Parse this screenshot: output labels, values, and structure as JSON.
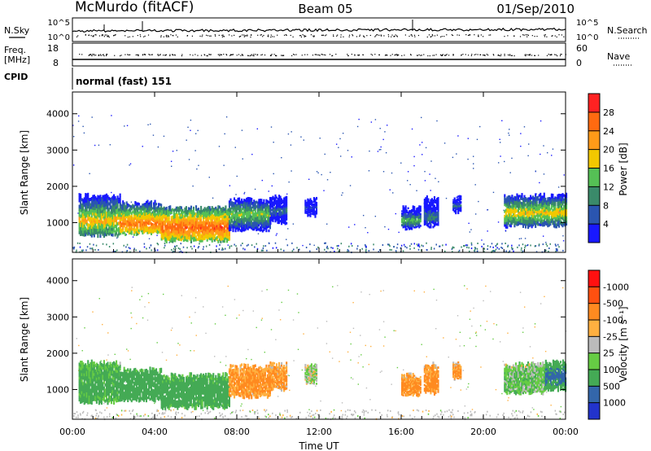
{
  "header": {
    "station": "McMurdo (fitACF)",
    "beam": "Beam 05",
    "date": "01/Sep/2010"
  },
  "summary_panels": {
    "nsky": {
      "label": "N.Sky",
      "ticks": [
        "10^5",
        "10^0"
      ]
    },
    "nsearch": {
      "label": "N.Search",
      "ticks": [
        "10^5",
        "10^0"
      ]
    },
    "freq": {
      "label_line1": "Freq.",
      "label_line2": "[MHz]",
      "ticks": [
        "18",
        "8"
      ]
    },
    "nave": {
      "label": "Nave",
      "ticks": [
        "60",
        "0"
      ]
    },
    "cpid": {
      "label": "CPID",
      "value": "normal (fast) 151"
    }
  },
  "chart_data": [
    {
      "type": "heatmap",
      "name": "power",
      "ylabel": "Slant Range [km]",
      "xlabel": "Time UT",
      "x_ticks": [
        "00:00",
        "04:00",
        "08:00",
        "12:00",
        "16:00",
        "20:00",
        "00:00"
      ],
      "x_range_hours": [
        0,
        24
      ],
      "y_ticks": [
        1000,
        2000,
        3000,
        4000
      ],
      "ylim": [
        180,
        4600
      ],
      "colorbar": {
        "label": "Power [dB]",
        "tick_labels": [
          "4",
          "8",
          "12",
          "16",
          "20",
          "24",
          "28"
        ],
        "bins": [
          {
            "color": "#1818ff"
          },
          {
            "color": "#2a55b0"
          },
          {
            "color": "#3a8a6a"
          },
          {
            "color": "#55c055"
          },
          {
            "color": "#f2c800"
          },
          {
            "color": "#ff9a18"
          },
          {
            "color": "#ff6a10"
          },
          {
            "color": "#ff2222"
          }
        ]
      },
      "patches": [
        {
          "t0": 0.3,
          "t1": 2.3,
          "r0": 650,
          "r1": 1750,
          "core": 1020,
          "value": 20
        },
        {
          "t0": 2.3,
          "t1": 4.3,
          "r0": 700,
          "r1": 1550,
          "core": 950,
          "value": 25
        },
        {
          "t0": 4.3,
          "t1": 7.6,
          "r0": 500,
          "r1": 1400,
          "core": 850,
          "value": 27
        },
        {
          "t0": 7.6,
          "t1": 9.6,
          "r0": 800,
          "r1": 1650,
          "core": 1200,
          "value": 16
        },
        {
          "t0": 9.6,
          "t1": 10.4,
          "r0": 1000,
          "r1": 1700,
          "core": 1300,
          "value": 9
        },
        {
          "t0": 11.3,
          "t1": 11.9,
          "r0": 1200,
          "r1": 1650,
          "core": 1400,
          "value": 6
        },
        {
          "t0": 16.0,
          "t1": 16.9,
          "r0": 850,
          "r1": 1400,
          "core": 1050,
          "value": 14
        },
        {
          "t0": 17.1,
          "t1": 17.8,
          "r0": 900,
          "r1": 1700,
          "core": 1150,
          "value": 10
        },
        {
          "t0": 18.5,
          "t1": 18.9,
          "r0": 1300,
          "r1": 1700,
          "core": 1450,
          "value": 9
        },
        {
          "t0": 21.0,
          "t1": 24.0,
          "r0": 900,
          "r1": 1750,
          "core": 1250,
          "value": 19
        }
      ]
    },
    {
      "type": "heatmap",
      "name": "velocity",
      "ylabel": "Slant Range [km]",
      "xlabel": "Time UT",
      "x_ticks": [
        "00:00",
        "04:00",
        "08:00",
        "12:00",
        "16:00",
        "20:00",
        "00:00"
      ],
      "x_range_hours": [
        0,
        24
      ],
      "y_ticks": [
        1000,
        2000,
        3000,
        4000
      ],
      "ylim": [
        180,
        4600
      ],
      "colorbar": {
        "label": "Velocity [m s⁻¹]",
        "tick_labels": [
          "1000",
          "500",
          "100",
          "25",
          "-25",
          "-100",
          "-500",
          "-1000"
        ],
        "bins": [
          {
            "color": "#2233cc"
          },
          {
            "color": "#3366aa"
          },
          {
            "color": "#44aa55"
          },
          {
            "color": "#66cc44"
          },
          {
            "color": "#bbbbbb"
          },
          {
            "color": "#ffb040"
          },
          {
            "color": "#ff8a20"
          },
          {
            "color": "#ff5010"
          },
          {
            "color": "#ff1010"
          }
        ]
      },
      "patches": [
        {
          "t0": 0.3,
          "t1": 2.3,
          "r0": 650,
          "r1": 1750,
          "core": 1050,
          "value": 180
        },
        {
          "t0": 2.3,
          "t1": 4.3,
          "r0": 700,
          "r1": 1550,
          "core": 1000,
          "value": 300
        },
        {
          "t0": 4.3,
          "t1": 7.6,
          "r0": 500,
          "r1": 1400,
          "core": 900,
          "value": 220
        },
        {
          "t0": 7.6,
          "t1": 9.6,
          "r0": 800,
          "r1": 1650,
          "core": 1200,
          "value": -150
        },
        {
          "t0": 9.6,
          "t1": 10.4,
          "r0": 1000,
          "r1": 1700,
          "core": 1300,
          "value": -120
        },
        {
          "t0": 11.3,
          "t1": 11.9,
          "r0": 1200,
          "r1": 1650,
          "core": 1400,
          "value": 30
        },
        {
          "t0": 16.0,
          "t1": 16.9,
          "r0": 850,
          "r1": 1400,
          "core": 1050,
          "value": -150
        },
        {
          "t0": 17.1,
          "t1": 17.8,
          "r0": 900,
          "r1": 1700,
          "core": 1150,
          "value": -160
        },
        {
          "t0": 18.5,
          "t1": 18.9,
          "r0": 1300,
          "r1": 1700,
          "core": 1450,
          "value": -140
        },
        {
          "t0": 21.0,
          "t1": 23.0,
          "r0": 900,
          "r1": 1700,
          "core": 1200,
          "value": 80
        },
        {
          "t0": 23.0,
          "t1": 24.0,
          "r0": 1000,
          "r1": 1750,
          "core": 1350,
          "value": 600
        }
      ]
    }
  ]
}
